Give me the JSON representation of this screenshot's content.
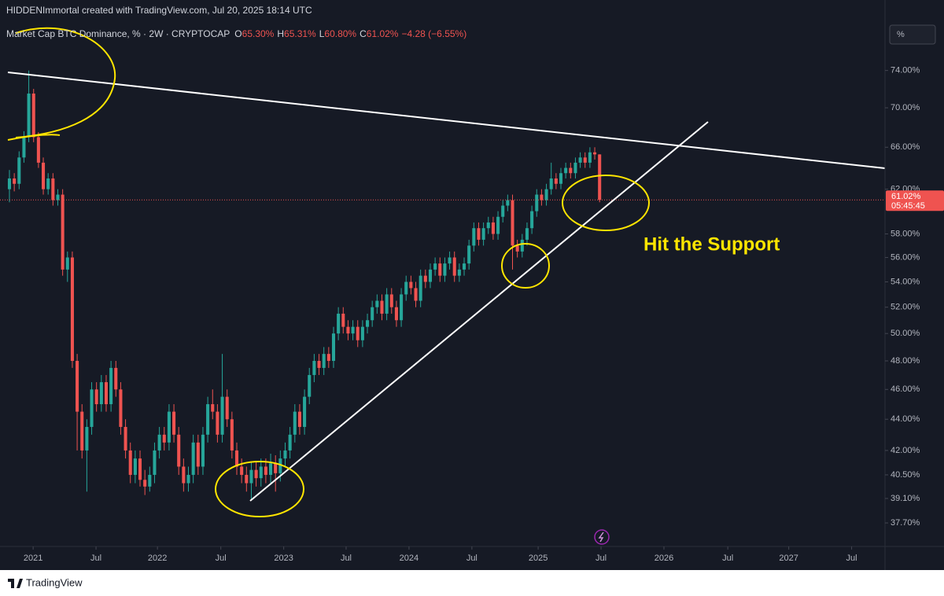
{
  "watermark": "HIDDENImmortal created with TradingView.com, Jul 20, 2025 18:14 UTC",
  "annotation": "Hit the Support",
  "scale_button": "%",
  "footer": "TradingView",
  "legend": [
    {
      "text": "Market Cap BTC Dominance, % · 2W · CRYPTOCAP",
      "color": "#d1d4dc"
    },
    {
      "text": "O",
      "color": "#d1d4dc"
    },
    {
      "text": "65.30%",
      "color": "#ef5350"
    },
    {
      "text": "H",
      "color": "#d1d4dc"
    },
    {
      "text": "65.31%",
      "color": "#ef5350"
    },
    {
      "text": "L",
      "color": "#d1d4dc"
    },
    {
      "text": "60.80%",
      "color": "#ef5350"
    },
    {
      "text": "C",
      "color": "#d1d4dc"
    },
    {
      "text": "61.02%",
      "color": "#ef5350"
    },
    {
      "text": "−4.28 (−6.55%)",
      "color": "#ef5350"
    }
  ],
  "price_label": {
    "price": "61.02%",
    "countdown": "05:45:45",
    "color": "#ef5350"
  },
  "chart_data": {
    "type": "candlestick",
    "log_scale": true,
    "up_color": "#26a69a",
    "down_color": "#ef5350",
    "ylim": [
      36.4,
      82.2
    ],
    "yticks": [
      {
        "value": 74,
        "label": "74.00%"
      },
      {
        "value": 70,
        "label": "70.00%"
      },
      {
        "value": 66,
        "label": "66.00%"
      },
      {
        "value": 62,
        "label": "62.00%"
      },
      {
        "value": 58,
        "label": "58.00%"
      },
      {
        "value": 56,
        "label": "56.00%"
      },
      {
        "value": 54,
        "label": "54.00%"
      },
      {
        "value": 52,
        "label": "52.00%"
      },
      {
        "value": 50,
        "label": "50.00%"
      },
      {
        "value": 48,
        "label": "48.00%"
      },
      {
        "value": 46,
        "label": "46.00%"
      },
      {
        "value": 44,
        "label": "44.00%"
      },
      {
        "value": 42,
        "label": "42.00%"
      },
      {
        "value": 40.5,
        "label": "40.50%"
      },
      {
        "value": 39.1,
        "label": "39.10%"
      },
      {
        "value": 37.7,
        "label": "37.70%"
      }
    ],
    "xlim": [
      -1.95,
      181
    ],
    "xticks": [
      {
        "value": 4.9,
        "label": "2021"
      },
      {
        "value": 17.9,
        "label": "Jul"
      },
      {
        "value": 30.6,
        "label": "2022"
      },
      {
        "value": 43.7,
        "label": "Jul"
      },
      {
        "value": 56.7,
        "label": "2023"
      },
      {
        "value": 69.6,
        "label": "Jul"
      },
      {
        "value": 82.6,
        "label": "2024"
      },
      {
        "value": 95.6,
        "label": "Jul"
      },
      {
        "value": 109.3,
        "label": "2025"
      },
      {
        "value": 122.3,
        "label": "Jul"
      },
      {
        "value": 135.3,
        "label": "2026"
      },
      {
        "value": 148.5,
        "label": "Jul"
      },
      {
        "value": 161.1,
        "label": "2027"
      },
      {
        "value": 174.1,
        "label": "Jul"
      }
    ],
    "candles": [
      [
        62.0,
        63.8,
        60.8,
        63.0
      ],
      [
        63.0,
        63.5,
        61.8,
        62.5
      ],
      [
        62.5,
        65.6,
        62.0,
        65.0
      ],
      [
        65.0,
        67.6,
        64.5,
        67.0
      ],
      [
        67.0,
        74.0,
        66.5,
        71.5
      ],
      [
        71.5,
        72.0,
        66.5,
        67.0
      ],
      [
        67.0,
        67.5,
        64.0,
        64.5
      ],
      [
        64.5,
        65.0,
        61.5,
        62.0
      ],
      [
        62.0,
        63.5,
        61.5,
        63.0
      ],
      [
        63.0,
        63.5,
        60.5,
        61.0
      ],
      [
        61.0,
        62.0,
        60.5,
        61.5
      ],
      [
        61.5,
        62.0,
        54.5,
        55.0
      ],
      [
        55.0,
        56.5,
        54.0,
        56.0
      ],
      [
        56.0,
        56.5,
        47.5,
        48.0
      ],
      [
        48.0,
        48.5,
        42.0,
        44.5
      ],
      [
        44.5,
        45.0,
        41.5,
        42.0
      ],
      [
        42.0,
        44.0,
        39.5,
        43.5
      ],
      [
        43.5,
        46.5,
        43.0,
        46.0
      ],
      [
        46.0,
        46.5,
        44.5,
        45.0
      ],
      [
        45.0,
        47.0,
        44.5,
        46.5
      ],
      [
        46.5,
        47.0,
        44.5,
        45.0
      ],
      [
        45.0,
        48.0,
        44.5,
        47.5
      ],
      [
        47.5,
        48.0,
        45.5,
        46.0
      ],
      [
        46.0,
        46.5,
        43.0,
        43.5
      ],
      [
        43.5,
        44.0,
        41.5,
        42.0
      ],
      [
        42.0,
        42.5,
        40.0,
        40.5
      ],
      [
        40.5,
        42.0,
        40.0,
        41.5
      ],
      [
        41.5,
        42.0,
        39.8,
        40.2
      ],
      [
        40.2,
        40.8,
        39.3,
        39.8
      ],
      [
        39.8,
        41.0,
        39.5,
        40.5
      ],
      [
        40.5,
        42.5,
        40.0,
        42.0
      ],
      [
        42.0,
        43.5,
        41.5,
        43.0
      ],
      [
        43.0,
        43.5,
        42.0,
        42.5
      ],
      [
        42.5,
        45.0,
        42.0,
        44.5
      ],
      [
        44.5,
        45.0,
        42.5,
        43.0
      ],
      [
        43.0,
        43.5,
        40.5,
        41.0
      ],
      [
        41.0,
        41.5,
        39.5,
        40.0
      ],
      [
        40.0,
        41.0,
        39.5,
        40.5
      ],
      [
        40.5,
        43.0,
        40.0,
        42.5
      ],
      [
        42.5,
        43.0,
        40.5,
        41.0
      ],
      [
        41.0,
        43.5,
        40.5,
        43.0
      ],
      [
        43.0,
        45.5,
        42.5,
        45.0
      ],
      [
        45.0,
        46.0,
        44.0,
        44.5
      ],
      [
        44.5,
        45.0,
        42.5,
        43.0
      ],
      [
        43.0,
        48.5,
        42.5,
        45.5
      ],
      [
        45.5,
        46.0,
        43.5,
        44.0
      ],
      [
        44.0,
        44.5,
        41.5,
        42.0
      ],
      [
        42.0,
        42.5,
        40.5,
        41.0
      ],
      [
        41.0,
        41.5,
        40.0,
        40.5
      ],
      [
        40.5,
        41.0,
        39.5,
        40.0
      ],
      [
        40.0,
        41.3,
        39.0,
        40.8
      ],
      [
        40.8,
        41.3,
        39.8,
        40.3
      ],
      [
        40.3,
        41.5,
        39.8,
        41.0
      ],
      [
        41.0,
        41.5,
        40.0,
        40.5
      ],
      [
        40.5,
        41.8,
        40.0,
        41.2
      ],
      [
        41.2,
        41.7,
        39.5,
        40.6
      ],
      [
        40.6,
        42.0,
        40.1,
        41.5
      ],
      [
        41.5,
        42.5,
        41.0,
        42.0
      ],
      [
        42.0,
        43.5,
        41.5,
        43.0
      ],
      [
        43.0,
        45.0,
        42.5,
        44.5
      ],
      [
        44.5,
        45.0,
        43.0,
        43.5
      ],
      [
        43.5,
        46.0,
        43.0,
        45.5
      ],
      [
        45.5,
        47.5,
        45.0,
        47.0
      ],
      [
        47.0,
        48.5,
        46.5,
        48.0
      ],
      [
        48.0,
        48.5,
        47.0,
        47.5
      ],
      [
        47.5,
        49.0,
        47.0,
        48.5
      ],
      [
        48.5,
        49.0,
        47.5,
        48.0
      ],
      [
        48.0,
        50.5,
        47.5,
        50.0
      ],
      [
        50.0,
        52.0,
        49.5,
        51.5
      ],
      [
        51.5,
        52.0,
        50.0,
        50.5
      ],
      [
        50.5,
        51.0,
        49.5,
        50.0
      ],
      [
        50.0,
        51.0,
        49.5,
        50.5
      ],
      [
        50.5,
        51.0,
        49.0,
        49.5
      ],
      [
        49.5,
        51.0,
        49.0,
        50.5
      ],
      [
        50.5,
        51.5,
        50.0,
        51.0
      ],
      [
        51.0,
        52.5,
        50.5,
        52.0
      ],
      [
        52.0,
        53.0,
        51.5,
        52.5
      ],
      [
        52.5,
        53.0,
        51.0,
        51.5
      ],
      [
        51.5,
        53.5,
        51.0,
        53.0
      ],
      [
        53.0,
        53.5,
        51.5,
        52.0
      ],
      [
        52.0,
        52.5,
        50.5,
        51.0
      ],
      [
        51.0,
        53.5,
        50.5,
        53.0
      ],
      [
        53.0,
        54.5,
        52.5,
        54.0
      ],
      [
        54.0,
        54.5,
        53.0,
        53.5
      ],
      [
        53.5,
        54.0,
        52.0,
        52.5
      ],
      [
        52.5,
        55.0,
        52.0,
        54.5
      ],
      [
        54.5,
        55.0,
        53.5,
        54.0
      ],
      [
        54.0,
        55.5,
        53.5,
        55.0
      ],
      [
        55.0,
        56.0,
        54.5,
        55.5
      ],
      [
        55.5,
        56.0,
        54.0,
        54.5
      ],
      [
        54.5,
        56.0,
        54.0,
        55.5
      ],
      [
        55.5,
        56.5,
        55.0,
        56.0
      ],
      [
        56.0,
        56.5,
        54.0,
        54.5
      ],
      [
        54.5,
        55.5,
        54.0,
        55.0
      ],
      [
        55.0,
        56.0,
        54.5,
        55.5
      ],
      [
        55.5,
        57.5,
        55.0,
        57.0
      ],
      [
        57.0,
        59.0,
        56.5,
        58.5
      ],
      [
        58.5,
        59.0,
        57.0,
        57.5
      ],
      [
        57.5,
        59.0,
        57.0,
        58.5
      ],
      [
        58.5,
        59.5,
        58.0,
        59.0
      ],
      [
        59.0,
        59.5,
        57.5,
        58.0
      ],
      [
        58.0,
        60.0,
        57.5,
        59.5
      ],
      [
        59.5,
        61.0,
        59.0,
        60.5
      ],
      [
        60.5,
        61.5,
        60.0,
        61.0
      ],
      [
        61.0,
        61.5,
        55.0,
        57.0
      ],
      [
        57.0,
        57.5,
        56.0,
        56.5
      ],
      [
        56.5,
        58.0,
        56.0,
        57.5
      ],
      [
        57.5,
        59.0,
        57.0,
        58.5
      ],
      [
        58.5,
        60.5,
        58.0,
        60.0
      ],
      [
        60.0,
        62.0,
        59.5,
        61.5
      ],
      [
        61.5,
        62.0,
        60.5,
        61.0
      ],
      [
        61.0,
        62.5,
        60.5,
        62.0
      ],
      [
        62.0,
        64.5,
        61.5,
        63.0
      ],
      [
        63.0,
        63.5,
        62.0,
        62.5
      ],
      [
        62.5,
        64.0,
        62.0,
        63.5
      ],
      [
        63.5,
        64.5,
        63.0,
        64.0
      ],
      [
        64.0,
        64.5,
        63.0,
        63.5
      ],
      [
        63.5,
        65.0,
        63.0,
        64.5
      ],
      [
        64.5,
        65.5,
        64.0,
        65.0
      ],
      [
        65.0,
        65.5,
        64.0,
        64.5
      ],
      [
        64.5,
        66.0,
        64.0,
        65.5
      ],
      [
        65.5,
        66.0,
        64.8,
        65.3
      ],
      [
        65.3,
        65.31,
        60.8,
        61.02
      ]
    ]
  }
}
